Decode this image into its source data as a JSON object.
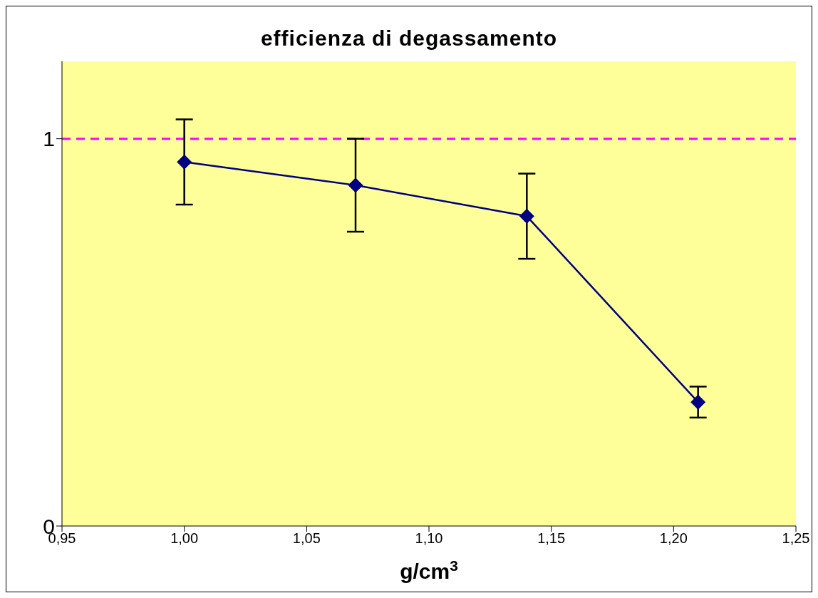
{
  "chart_data": {
    "type": "line",
    "title": "efficienza di degassamento",
    "xlabel": "g/cm$^{3}$",
    "x": [
      1.0,
      1.07,
      1.14,
      1.21
    ],
    "series": [
      {
        "color": "#000080",
        "values": [
          0.94,
          0.88,
          0.8,
          0.32
        ],
        "errors": [
          0.11,
          0.12,
          0.11,
          0.04
        ]
      }
    ],
    "xlim": [
      0.95,
      1.25
    ],
    "xticks": [
      {
        "value": 0.95,
        "label": "0,95"
      },
      {
        "value": 1.0,
        "label": "1,00"
      },
      {
        "value": 1.05,
        "label": "1,05"
      },
      {
        "value": 1.1,
        "label": "1,10"
      },
      {
        "value": 1.15,
        "label": "1,15"
      },
      {
        "value": 1.2,
        "label": "1,20"
      },
      {
        "value": 1.25,
        "label": "1,25"
      }
    ],
    "ylim": [
      0,
      1.2
    ],
    "yticks": [
      0,
      1
    ],
    "ref_lines": [
      {
        "axis": "y",
        "value": 1,
        "color": "#ff00ff",
        "line_style": "dashed"
      }
    ],
    "grid": false,
    "marker": "diamond",
    "line_style": "solid"
  }
}
